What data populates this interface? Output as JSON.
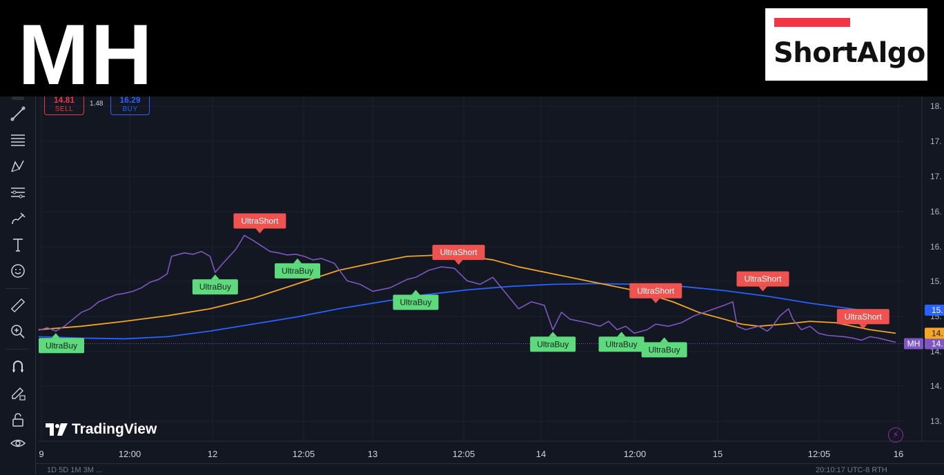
{
  "header": {
    "ticker": "MH",
    "logo_text": "ShortAlgo"
  },
  "order_panel": {
    "sell_price": "14.81",
    "sell_label": "SELL",
    "spread": "1.48",
    "buy_price": "16.29",
    "buy_label": "BUY"
  },
  "branding": {
    "tradingview": "TradingView"
  },
  "colors": {
    "price_line": "#7e57c2",
    "ma_fast": "#f5a623",
    "ma_slow": "#2962ff",
    "buy_signal": "#4caf50",
    "sell_signal": "#ef5350",
    "background": "#131722"
  },
  "toolbar_icons": [
    "crosshair-icon",
    "trend-line-icon",
    "fib-icon",
    "pattern-icon",
    "forecast-icon",
    "brush-icon",
    "text-icon",
    "emoji-icon",
    "ruler-icon",
    "zoom-icon",
    "magnet-icon",
    "lock-drawing-icon",
    "lock-icon",
    "eye-icon"
  ],
  "bottom_bar": {
    "left": "1D  5D  1M  3M  ...",
    "right": "20:10:17 UTC-8  RTH"
  },
  "chart_data": {
    "type": "line",
    "x_ticks": [
      "9",
      "12:00",
      "12",
      "12:05",
      "13",
      "12:05",
      "14",
      "12:00",
      "15",
      "12:05",
      "16"
    ],
    "y_ticks": [
      "18.",
      "17.",
      "17.",
      "16.",
      "16.",
      "15.",
      "15.",
      "14.",
      "14.",
      "13."
    ],
    "y_range": [
      13.6,
      18.1
    ],
    "price_labels": [
      {
        "name": "MH",
        "value": "14.",
        "color": "#7e57c2"
      },
      {
        "name": "",
        "value": "14.",
        "color": "#f5a623"
      },
      {
        "name": "",
        "value": "15.",
        "color": "#2962ff"
      }
    ],
    "series": [
      {
        "color": "#7e57c2",
        "values": [
          14.89,
          14.93,
          14.88,
          14.95,
          15.05,
          15.15,
          15.2,
          15.3,
          15.35,
          15.4,
          15.42,
          15.45,
          15.5,
          15.58,
          15.62,
          15.7,
          15.95,
          16.0,
          15.98,
          16.02,
          15.95,
          15.72,
          15.85,
          16.05,
          16.25,
          16.18,
          16.1,
          16.02,
          16.0,
          15.97,
          15.98,
          15.95,
          15.9,
          15.92,
          15.85,
          15.6,
          15.55,
          15.45,
          15.5,
          15.62,
          15.65,
          15.75,
          15.8,
          15.78,
          15.6,
          15.55,
          15.65,
          15.5,
          15.2,
          15.3,
          15.25,
          14.9,
          15.15,
          15.05,
          15.0,
          14.95,
          15.02,
          14.9,
          14.95,
          14.85,
          14.9,
          14.98,
          14.95,
          15.0,
          15.1,
          15.25,
          15.3,
          14.95,
          14.9,
          14.95,
          14.88,
          14.93,
          15.1,
          15.2,
          15.05,
          14.9,
          14.95,
          14.85,
          14.82,
          14.8,
          14.78,
          14.75,
          14.8,
          14.78,
          14.72
        ],
        "x": [
          0.0,
          0.01,
          0.02,
          0.03,
          0.04,
          0.05,
          0.06,
          0.07,
          0.08,
          0.09,
          0.1,
          0.11,
          0.12,
          0.13,
          0.14,
          0.15,
          0.155,
          0.17,
          0.18,
          0.19,
          0.2,
          0.206,
          0.215,
          0.23,
          0.24,
          0.25,
          0.26,
          0.27,
          0.28,
          0.29,
          0.3,
          0.31,
          0.32,
          0.33,
          0.345,
          0.36,
          0.375,
          0.39,
          0.41,
          0.43,
          0.44,
          0.455,
          0.47,
          0.485,
          0.5,
          0.515,
          0.53,
          0.54,
          0.56,
          0.575,
          0.59,
          0.6,
          0.61,
          0.62,
          0.64,
          0.655,
          0.665,
          0.675,
          0.685,
          0.695,
          0.71,
          0.72,
          0.735,
          0.75,
          0.765,
          0.8,
          0.81,
          0.815,
          0.825,
          0.84,
          0.85,
          0.855,
          0.865,
          0.875,
          0.88,
          0.89,
          0.9,
          0.91,
          0.92,
          0.94,
          0.95,
          0.96,
          0.97,
          0.98,
          1.0
        ]
      },
      {
        "color": "#f5a623",
        "values": [
          14.9,
          14.95,
          15.02,
          15.1,
          15.2,
          15.35,
          15.55,
          15.75,
          15.88,
          15.95,
          15.96,
          15.97,
          15.95,
          15.9,
          15.8,
          15.7,
          15.65,
          15.6,
          15.55,
          15.45,
          15.3,
          15.15,
          15.05,
          14.98,
          14.95,
          14.98,
          15.02,
          15.0,
          14.95,
          14.9,
          14.85
        ],
        "x": [
          0.0,
          0.05,
          0.1,
          0.15,
          0.2,
          0.25,
          0.3,
          0.35,
          0.4,
          0.43,
          0.45,
          0.47,
          0.5,
          0.53,
          0.56,
          0.6,
          0.62,
          0.64,
          0.66,
          0.7,
          0.74,
          0.77,
          0.8,
          0.82,
          0.84,
          0.87,
          0.9,
          0.93,
          0.95,
          0.97,
          1.0
        ]
      },
      {
        "color": "#2962ff",
        "values": [
          14.8,
          14.78,
          14.77,
          14.8,
          14.88,
          14.98,
          15.08,
          15.2,
          15.3,
          15.4,
          15.47,
          15.52,
          15.55,
          15.56,
          15.55,
          15.52,
          15.46,
          15.38,
          15.28,
          15.18
        ],
        "x": [
          0.0,
          0.05,
          0.1,
          0.15,
          0.2,
          0.25,
          0.3,
          0.35,
          0.4,
          0.45,
          0.5,
          0.55,
          0.6,
          0.65,
          0.7,
          0.75,
          0.8,
          0.85,
          0.9,
          0.96
        ]
      }
    ],
    "annotations": [
      {
        "label": "UltraBuy",
        "type": "buy",
        "x": 0.02,
        "y": 14.88
      },
      {
        "label": "UltraShort",
        "type": "sell",
        "x": 0.258,
        "y": 16.25
      },
      {
        "label": "UltraBuy",
        "type": "buy",
        "x": 0.206,
        "y": 15.72
      },
      {
        "label": "UltraBuy",
        "type": "buy",
        "x": 0.302,
        "y": 15.95
      },
      {
        "label": "UltraShort",
        "type": "sell",
        "x": 0.49,
        "y": 15.8
      },
      {
        "label": "UltraBuy",
        "type": "buy",
        "x": 0.44,
        "y": 15.5
      },
      {
        "label": "UltraBuy",
        "type": "buy",
        "x": 0.6,
        "y": 14.9
      },
      {
        "label": "UltraShort",
        "type": "sell",
        "x": 0.72,
        "y": 15.25
      },
      {
        "label": "UltraBuy",
        "type": "buy",
        "x": 0.68,
        "y": 14.9
      },
      {
        "label": "UltraBuy",
        "type": "buy",
        "x": 0.73,
        "y": 14.82
      },
      {
        "label": "UltraShort",
        "type": "sell",
        "x": 0.845,
        "y": 15.42
      },
      {
        "label": "UltraShort",
        "type": "sell",
        "x": 0.962,
        "y": 14.88
      }
    ]
  }
}
